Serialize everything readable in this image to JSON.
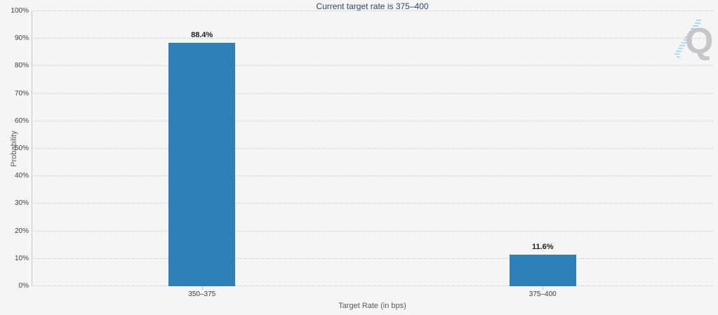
{
  "chart_data": {
    "type": "bar",
    "title": "Current target rate is 375–400",
    "categories": [
      "350–375",
      "375–400"
    ],
    "values": [
      88.4,
      11.6
    ],
    "data_labels": [
      "88.4%",
      "11.6%"
    ],
    "xlabel": "Target Rate (in bps)",
    "ylabel": "Probability",
    "ylim": [
      0,
      100
    ],
    "ytick_interval": 10,
    "ytick_suffix": "%",
    "grid": "horizontal-dotted",
    "legend": "none",
    "bar_color": "#2d81b8"
  },
  "watermark": {
    "letter": "Q"
  },
  "colors": {
    "background": "#f5f5f6",
    "bar": "#2d81b8",
    "title_text": "#2d4373",
    "gridline": "#cbcbcb",
    "axis_line": "#c9c9c9",
    "tick_label": "#3f3f3f",
    "data_label": "#1c1c1c",
    "axis_title": "#55595c",
    "watermark_q": "#c5c7c8",
    "watermark_dash": "#aed9f2"
  }
}
